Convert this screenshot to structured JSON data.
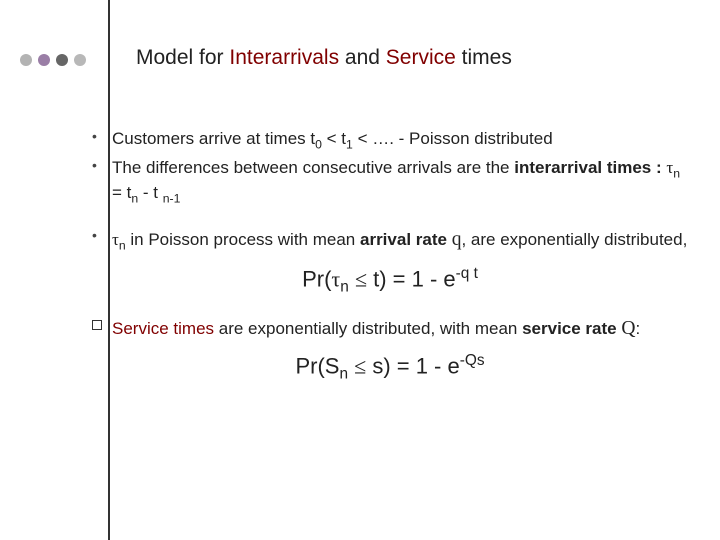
{
  "colors": {
    "dot1": "#b3b3b3",
    "dot2": "#9a7ea6",
    "dot3": "#666666",
    "dot4": "#b8b8b8",
    "maroon": "#800000",
    "text": "#222222",
    "bg": "#ffffff",
    "vline": "#333333"
  },
  "typography": {
    "body_family": "Verdana",
    "body_size_pt": 13,
    "title_family": "Arial",
    "title_size_pt": 16,
    "formula_size_pt": 17
  },
  "title": {
    "t1": "Model for ",
    "t2": "Interarrivals",
    "t3": "  and ",
    "t4": "Service",
    "t5": " times"
  },
  "bullets": {
    "b1a": "Customers arrive at times t",
    "b1b": " < t",
    "b1c": " < ….  - Poisson distributed",
    "b2a": "The differences between consecutive arrivals are the ",
    "b2b": "interarrival times : ",
    "b2c": " = t",
    "b2d": " - t ",
    "b3a": " in Poisson process with mean  ",
    "b3b": "arrival rate",
    "b3c": ", are exponentially distributed,"
  },
  "sub": {
    "zero": "0",
    "one": "1",
    "n": "n",
    "nm1": "n-1"
  },
  "sym": {
    "tau": "τ",
    "leq": "≤",
    "q": "q",
    "Q": "Q"
  },
  "formula1": {
    "p1": "Pr(",
    "p2": " ",
    "p3": " t) = 1 - e"
  },
  "sup": {
    "neg_qt": "-q t",
    "neg_Qs": "-Qs"
  },
  "block2": {
    "l1a": "Service times",
    "l1b": " are exponentially distributed, with mean  ",
    "l1c": "service rate",
    "l1d": ":"
  },
  "formula2": {
    "p1": "Pr(S",
    "p2": " ",
    "p3": " s) = 1 - e"
  }
}
